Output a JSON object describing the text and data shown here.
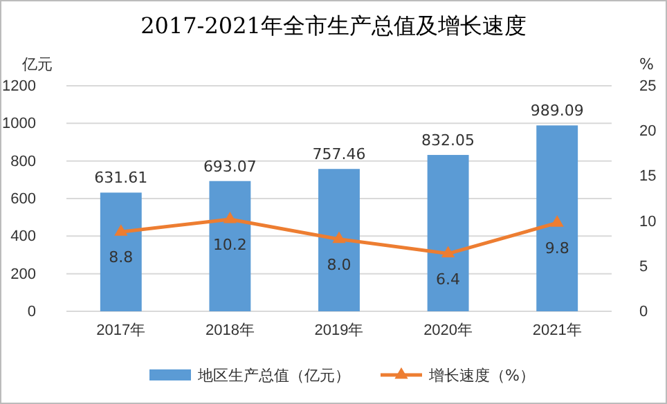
{
  "chart_data": {
    "type": "bar",
    "title": "2017-2021年全市生产总值及增长速度",
    "ylabel": "亿元",
    "y2label": "%",
    "categories": [
      "2017年",
      "2018年",
      "2019年",
      "2020年",
      "2021年"
    ],
    "series": [
      {
        "name": "地区生产总值（亿元）",
        "color": "#5b9bd5",
        "values": [
          631.61,
          693.07,
          757.46,
          832.05,
          989.09
        ],
        "value_labels": [
          "631.61",
          "693.07",
          "757.46",
          "832.05",
          "989.09"
        ]
      },
      {
        "name": "增长速度（%）",
        "type": "line",
        "axis": "y2",
        "color": "#ed7d31",
        "marker": "triangle",
        "values": [
          8.8,
          10.2,
          8.0,
          6.4,
          9.8
        ],
        "value_labels": [
          "8.8",
          "10.2",
          "8.0",
          "6.4",
          "9.8"
        ]
      }
    ],
    "ylim": [
      0,
      1200
    ],
    "yticks": [
      0,
      200,
      400,
      600,
      800,
      1000,
      1200
    ],
    "y2lim": [
      0,
      25
    ],
    "y2ticks": [
      0,
      5,
      10,
      15,
      20,
      25
    ],
    "grid": "y",
    "legend": "bottom"
  }
}
